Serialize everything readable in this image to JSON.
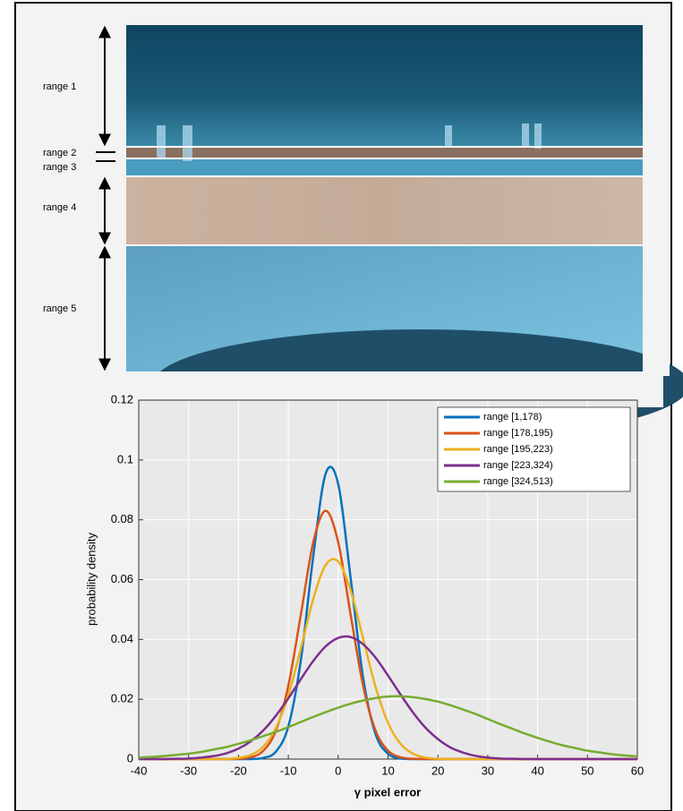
{
  "figure": {
    "range_labels": [
      "range 1",
      "range 2",
      "range 3",
      "range 4",
      "range 5"
    ]
  },
  "chart_data": {
    "type": "line",
    "x": [
      -40,
      -37.5,
      -35,
      -32.5,
      -30,
      -27.5,
      -25,
      -22.5,
      -20,
      -17.5,
      -15,
      -12.5,
      -10,
      -7.5,
      -5,
      -2.5,
      0,
      2.5,
      5,
      7.5,
      10,
      12.5,
      15,
      17.5,
      20,
      22.5,
      25,
      27.5,
      30,
      32.5,
      35,
      37.5,
      40,
      42.5,
      45,
      47.5,
      50,
      52.5,
      55,
      57.5,
      60
    ],
    "series": [
      {
        "name": "range [1,178)",
        "color": "#0072bd",
        "values": [
          0,
          0,
          0,
          0,
          0,
          0,
          0,
          0,
          0,
          0,
          0.0004,
          0.0025,
          0.0109,
          0.0329,
          0.0678,
          0.0955,
          0.092,
          0.0605,
          0.0272,
          0.0083,
          0.0018,
          0.0002,
          0,
          0,
          0,
          0,
          0,
          0,
          0,
          0,
          0,
          0,
          0,
          0,
          0,
          0,
          0,
          0,
          0,
          0,
          0
        ]
      },
      {
        "name": "range [178,195)",
        "color": "#d95319",
        "values": [
          0,
          0,
          0,
          0,
          0,
          0,
          0,
          0,
          0.0001,
          0.0006,
          0.0028,
          0.0095,
          0.0245,
          0.0482,
          0.0725,
          0.083,
          0.0725,
          0.0482,
          0.0245,
          0.0095,
          0.0028,
          0.0006,
          0.0001,
          0,
          0,
          0,
          0,
          0,
          0,
          0,
          0,
          0,
          0,
          0,
          0,
          0,
          0,
          0,
          0,
          0,
          0
        ]
      },
      {
        "name": "range [195,223)",
        "color": "#edb120",
        "values": [
          0,
          0,
          0,
          0,
          0,
          0,
          0,
          0,
          0.0004,
          0.0014,
          0.0042,
          0.0104,
          0.0213,
          0.0369,
          0.0535,
          0.0649,
          0.0661,
          0.0564,
          0.0403,
          0.0241,
          0.0121,
          0.0051,
          0.0018,
          0.0005,
          0.0001,
          0,
          0,
          0,
          0,
          0,
          0,
          0,
          0,
          0,
          0,
          0,
          0,
          0,
          0,
          0,
          0
        ]
      },
      {
        "name": "range [223,324)",
        "color": "#7e2f8e",
        "values": [
          0,
          0,
          0,
          0.0001,
          0.0002,
          0.0005,
          0.001,
          0.0019,
          0.0035,
          0.006,
          0.0096,
          0.0145,
          0.0203,
          0.0267,
          0.0328,
          0.0377,
          0.0405,
          0.0408,
          0.0384,
          0.0339,
          0.0279,
          0.0216,
          0.0156,
          0.0105,
          0.0067,
          0.0039,
          0.0022,
          0.0011,
          0.0005,
          0.0002,
          0.0001,
          0,
          0,
          0,
          0,
          0,
          0,
          0,
          0,
          0,
          0
        ]
      },
      {
        "name": "range [324,513)",
        "color": "#77ac30",
        "values": [
          0.0005,
          0.0007,
          0.001,
          0.0014,
          0.0018,
          0.0024,
          0.0032,
          0.004,
          0.0051,
          0.0063,
          0.0077,
          0.0091,
          0.0107,
          0.0124,
          0.0141,
          0.0157,
          0.0172,
          0.0185,
          0.0196,
          0.0204,
          0.0209,
          0.021,
          0.0207,
          0.0201,
          0.0192,
          0.018,
          0.0166,
          0.0151,
          0.0134,
          0.0117,
          0.0101,
          0.0085,
          0.0071,
          0.0058,
          0.0046,
          0.0037,
          0.0028,
          0.0022,
          0.0016,
          0.0012,
          0.0009
        ]
      }
    ],
    "xlabel": "γ pixel error",
    "ylabel": "probability density",
    "xlim": [
      -40,
      60
    ],
    "ylim": [
      0,
      0.12
    ],
    "xticks": [
      -40,
      -30,
      -20,
      -10,
      0,
      10,
      20,
      30,
      40,
      50,
      60
    ],
    "yticks": [
      0,
      0.02,
      0.04,
      0.06,
      0.08,
      0.1,
      0.12
    ],
    "grid": true,
    "legend": "upper right"
  }
}
